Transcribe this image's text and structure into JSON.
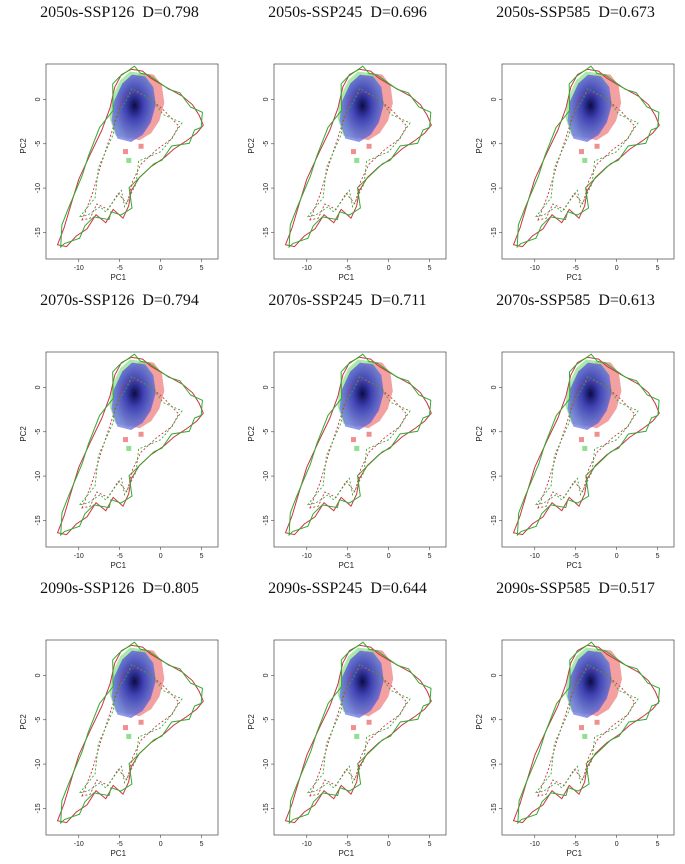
{
  "chart_data": {
    "type": "contour",
    "layout": "3x3 grid of environmental-space overlap plots",
    "xlabel": "PC1",
    "ylabel": "PC2",
    "xticks": [
      -10,
      -5,
      0,
      5
    ],
    "yticks": [
      0,
      -5,
      -10,
      -15
    ],
    "xlim": [
      -14,
      7
    ],
    "ylim": [
      -18,
      4
    ],
    "legend_colors": {
      "current_density": "#6f74e6",
      "future_only": "#f08f8f",
      "current_only": "#8fe08f",
      "contour_a": "#cc3344",
      "contour_b": "#33aa33"
    },
    "panels": [
      {
        "id": "2050s-SSP126",
        "title": "2050s-SSP126  D=0.798",
        "period": "2050s",
        "scenario": "SSP126",
        "D": 0.798
      },
      {
        "id": "2050s-SSP245",
        "title": "2050s-SSP245  D=0.696",
        "period": "2050s",
        "scenario": "SSP245",
        "D": 0.696
      },
      {
        "id": "2050s-SSP585",
        "title": "2050s-SSP585  D=0.673",
        "period": "2050s",
        "scenario": "SSP585",
        "D": 0.673
      },
      {
        "id": "2070s-SSP126",
        "title": "2070s-SSP126  D=0.794",
        "period": "2070s",
        "scenario": "SSP126",
        "D": 0.794
      },
      {
        "id": "2070s-SSP245",
        "title": "2070s-SSP245  D=0.711",
        "period": "2070s",
        "scenario": "SSP245",
        "D": 0.711
      },
      {
        "id": "2070s-SSP585",
        "title": "2070s-SSP585  D=0.613",
        "period": "2070s",
        "scenario": "SSP585",
        "D": 0.613
      },
      {
        "id": "2090s-SSP126",
        "title": "2090s-SSP126  D=0.805",
        "period": "2090s",
        "scenario": "SSP126",
        "D": 0.805
      },
      {
        "id": "2090s-SSP245",
        "title": "2090s-SSP245  D=0.644",
        "period": "2090s",
        "scenario": "SSP245",
        "D": 0.644
      },
      {
        "id": "2090s-SSP585",
        "title": "2090s-SSP585  D=0.517",
        "period": "2090s",
        "scenario": "SSP585",
        "D": 0.517
      }
    ]
  }
}
